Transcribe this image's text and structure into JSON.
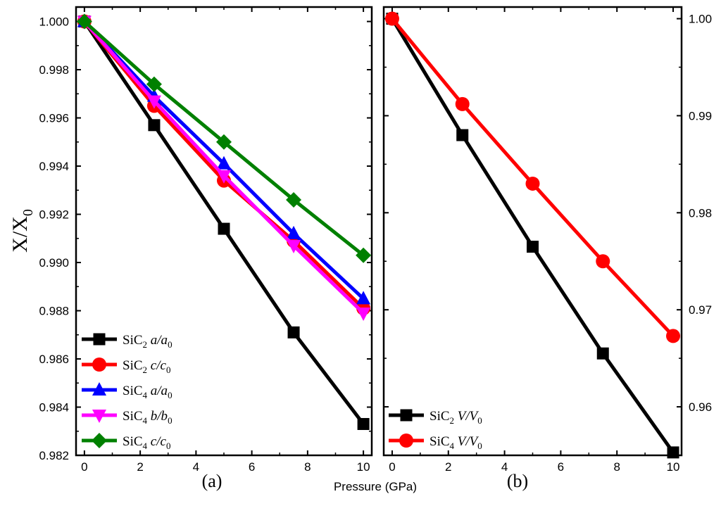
{
  "figure": {
    "ylabel_main": "X/X",
    "ylabel_sub": "0",
    "xlabel": "Pressure (GPa)"
  },
  "colors": {
    "SiC2": "#000000",
    "red": "#ff0000",
    "blue": "#0000ff",
    "magenta": "#ff00ff",
    "green": "#008000"
  },
  "chart_data": [
    {
      "type": "line",
      "panel_label": "(a)",
      "xlabel": "Pressure (GPa)",
      "ylabel": "X/X0",
      "x": [
        0,
        2.5,
        5,
        7.5,
        10
      ],
      "xlim": [
        -0.3,
        10.3
      ],
      "ylim": [
        0.982,
        1.0006
      ],
      "xticks": [
        0,
        2,
        4,
        6,
        8,
        10
      ],
      "yticks": [
        "0.982",
        "0.984",
        "0.986",
        "0.988",
        "0.990",
        "0.992",
        "0.994",
        "0.996",
        "0.998",
        "1.000"
      ],
      "legend_position": "bottom-left",
      "series": [
        {
          "name": "SiC2 a/a0",
          "formula": "SiC",
          "sub": "2",
          "ratio": "a/a",
          "ratio_sub": "0",
          "color": "#000000",
          "marker": "square",
          "values": [
            1.0,
            0.9957,
            0.9914,
            0.9871,
            0.9833
          ]
        },
        {
          "name": "SiC2 c/c0",
          "formula": "SiC",
          "sub": "2",
          "ratio": "c/c",
          "ratio_sub": "0",
          "color": "#ff0000",
          "marker": "circle",
          "values": [
            1.0,
            0.9965,
            0.9934,
            0.9909,
            0.9881
          ]
        },
        {
          "name": "SiC4 a/a0",
          "formula": "SiC",
          "sub": "4",
          "ratio": "a/a",
          "ratio_sub": "0",
          "color": "#0000ff",
          "marker": "triangle-up",
          "values": [
            1.0,
            0.9969,
            0.9941,
            0.9912,
            0.9885
          ]
        },
        {
          "name": "SiC4 b/b0",
          "formula": "SiC",
          "sub": "4",
          "ratio": "b/b",
          "ratio_sub": "0",
          "color": "#ff00ff",
          "marker": "triangle-down",
          "values": [
            1.0,
            0.9967,
            0.9936,
            0.9907,
            0.9879
          ]
        },
        {
          "name": "SiC4 c/c0",
          "formula": "SiC",
          "sub": "4",
          "ratio": "c/c",
          "ratio_sub": "0",
          "color": "#008000",
          "marker": "diamond",
          "values": [
            1.0,
            0.9974,
            0.995,
            0.9926,
            0.9903
          ]
        }
      ]
    },
    {
      "type": "line",
      "panel_label": "(b)",
      "xlabel": "",
      "ylabel": "",
      "x": [
        0,
        2.5,
        5,
        7.5,
        10
      ],
      "xlim": [
        -0.3,
        10.3
      ],
      "ylim": [
        0.955,
        1.0012
      ],
      "xticks": [
        0,
        2,
        4,
        6,
        8,
        10
      ],
      "yticks": [
        "0.96",
        "0.97",
        "0.98",
        "0.99",
        "1.00"
      ],
      "y_axis_side": "right",
      "legend_position": "bottom-left",
      "series": [
        {
          "name": "SiC2 V/V0",
          "formula": "SiC",
          "sub": "2",
          "ratio": "V/V",
          "ratio_sub": "0",
          "color": "#000000",
          "marker": "square",
          "values": [
            1.0,
            0.988,
            0.9765,
            0.9655,
            0.9553
          ]
        },
        {
          "name": "SiC4 V/V0",
          "formula": "SiC",
          "sub": "4",
          "ratio": "V/V",
          "ratio_sub": "0",
          "color": "#ff0000",
          "marker": "circle",
          "values": [
            1.0,
            0.9912,
            0.983,
            0.975,
            0.9673
          ]
        }
      ]
    }
  ]
}
